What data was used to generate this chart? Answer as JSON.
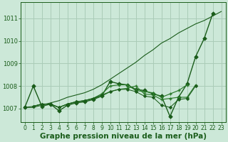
{
  "bg_color": "#cce8d8",
  "grid_color": "#aaccb8",
  "line_color_dark": "#1a5c1a",
  "line_color_mid": "#2a7a2a",
  "xlabel": "Graphe pression niveau de la mer (hPa)",
  "xlabel_fontsize": 7.5,
  "ytick_labels": [
    "1007",
    "1008",
    "1009",
    "1010",
    "1011"
  ],
  "yticks": [
    1007,
    1008,
    1009,
    1010,
    1011
  ],
  "xticks": [
    0,
    1,
    2,
    3,
    4,
    5,
    6,
    7,
    8,
    9,
    10,
    11,
    12,
    13,
    14,
    15,
    16,
    17,
    18,
    19,
    20,
    21,
    22,
    23
  ],
  "xlim": [
    -0.5,
    23.5
  ],
  "ylim": [
    1006.4,
    1011.7
  ],
  "series_line": [
    1007.05,
    1007.05,
    1007.15,
    1007.25,
    1007.35,
    1007.5,
    1007.6,
    1007.7,
    1007.85,
    1008.05,
    1008.3,
    1008.55,
    1008.8,
    1009.05,
    1009.35,
    1009.6,
    1009.9,
    1010.1,
    1010.35,
    1010.55,
    1010.75,
    1010.9,
    1011.1,
    1011.3
  ],
  "series_diamond_main": [
    1007.05,
    1008.0,
    1007.1,
    1007.2,
    1006.9,
    1007.15,
    1007.25,
    1007.3,
    1007.4,
    1007.55,
    1008.2,
    1008.1,
    1008.05,
    1007.85,
    1007.8,
    1007.65,
    1007.55,
    1006.65,
    1007.5,
    1008.1,
    1009.3,
    1010.1,
    1011.2,
    null
  ],
  "series_cross1": [
    null,
    1007.1,
    1007.2,
    1007.2,
    1007.05,
    1007.2,
    1007.3,
    1007.35,
    1007.45,
    1007.65,
    1008.0,
    1008.05,
    1008.05,
    1007.8,
    1007.75,
    1007.7,
    1007.5,
    1007.65,
    1007.8,
    1008.05,
    null,
    null,
    null,
    null
  ],
  "series_cross2": [
    null,
    1007.1,
    1007.2,
    1007.2,
    1007.05,
    1007.2,
    1007.3,
    1007.35,
    1007.45,
    1007.55,
    1007.75,
    1007.85,
    1007.9,
    1008.0,
    1007.65,
    1007.6,
    1007.4,
    1007.45,
    1007.5,
    1007.5,
    1008.05,
    null,
    null,
    null
  ],
  "series_diamond_low": [
    1007.05,
    1007.1,
    1007.2,
    1007.2,
    1007.05,
    1007.2,
    1007.3,
    1007.35,
    1007.45,
    1007.6,
    1007.75,
    1007.85,
    1007.85,
    1007.75,
    1007.55,
    1007.5,
    1007.15,
    1007.05,
    1007.4,
    1007.45,
    1008.0,
    null,
    null,
    null
  ]
}
